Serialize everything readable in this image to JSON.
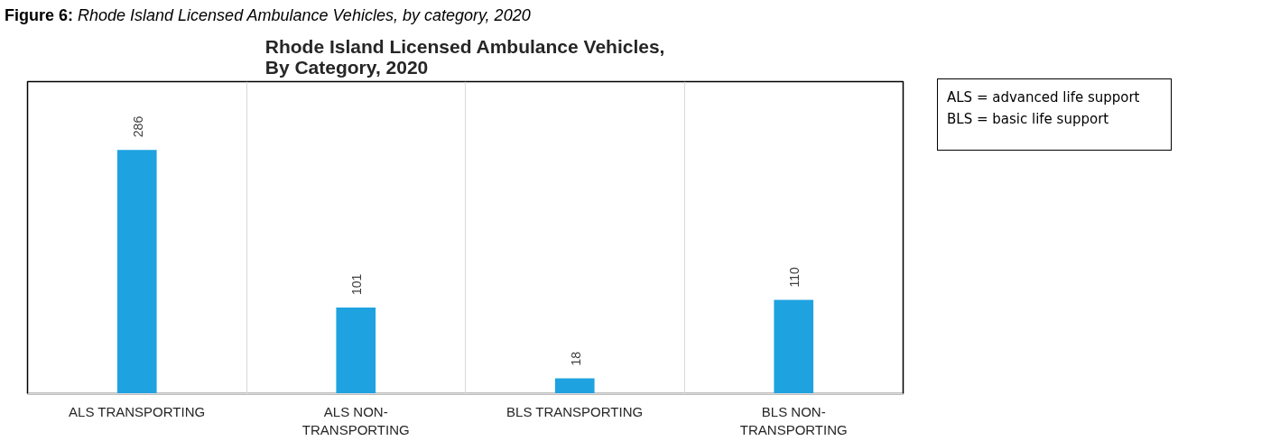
{
  "chart_data": {
    "type": "bar",
    "title": "Rhode Island Licensed Ambulance Vehicles,\nBy Category, 2020",
    "categories": [
      "ALS TRANSPORTING",
      "ALS NON-TRANSPORTING",
      "BLS TRANSPORTING",
      "BLS NON-TRANSPORTING"
    ],
    "values": [
      286,
      101,
      18,
      110
    ],
    "color": "#1fa2e0",
    "data_labels": true,
    "grid": "x",
    "annotations": [
      "Figure 6: Rhode Island Licensed Ambulance Vehicles, by category, 2020",
      "ALS = advanced life support",
      "BLS = basic life support"
    ]
  }
}
